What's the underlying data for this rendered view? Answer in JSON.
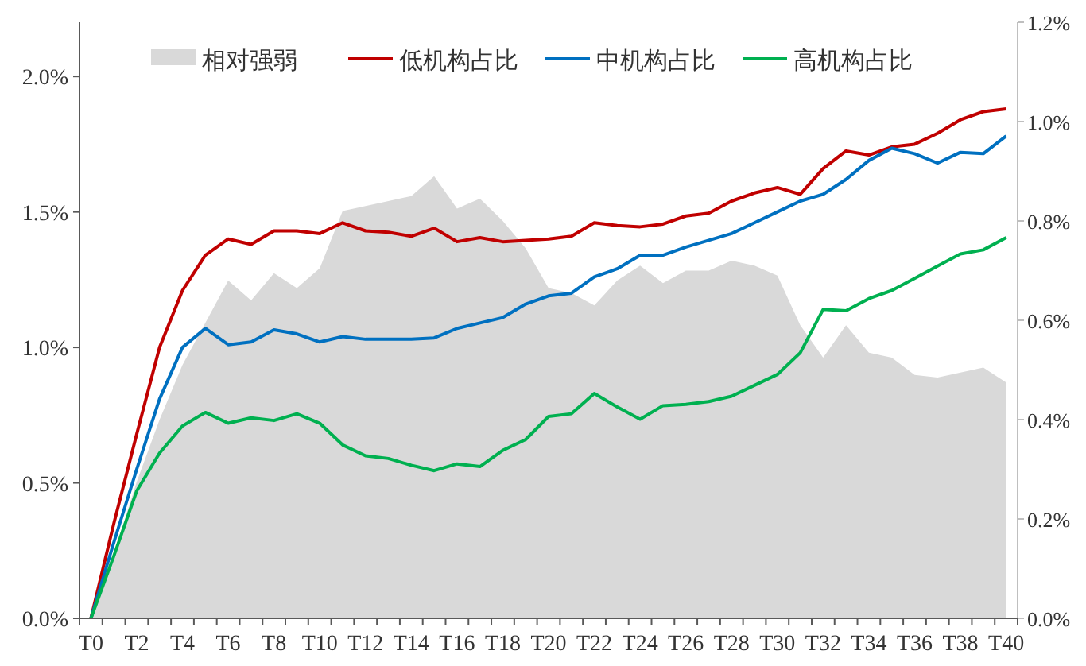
{
  "chart_data": {
    "type": "line",
    "categories": [
      "T0",
      null,
      "T2",
      null,
      "T4",
      null,
      "T6",
      null,
      "T8",
      null,
      "T10",
      null,
      "T12",
      null,
      "T14",
      null,
      "T16",
      null,
      "T18",
      null,
      "T20",
      null,
      "T22",
      null,
      "T24",
      null,
      "T26",
      null,
      "T28",
      null,
      "T30",
      null,
      "T32",
      null,
      "T34",
      null,
      "T36",
      null,
      "T38",
      null,
      "T40"
    ],
    "series": [
      {
        "name": "相对强弱",
        "type": "area",
        "axis": "y2",
        "color": "#d9d9d9",
        "values": [
          0,
          0.13,
          0.275,
          0.4,
          0.51,
          0.595,
          0.68,
          0.64,
          0.695,
          0.665,
          0.705,
          0.82,
          0.83,
          0.84,
          0.85,
          0.89,
          0.825,
          0.845,
          0.8,
          0.745,
          0.665,
          0.655,
          0.63,
          0.68,
          0.71,
          0.675,
          0.7,
          0.7,
          0.72,
          0.71,
          0.69,
          0.59,
          0.525,
          0.59,
          0.535,
          0.525,
          0.49,
          0.485,
          0.495,
          0.505,
          0.475
        ]
      },
      {
        "name": "低机构占比",
        "color": "#c00000",
        "values": [
          0,
          0.35,
          0.68,
          1.0,
          1.21,
          1.34,
          1.4,
          1.38,
          1.43,
          1.43,
          1.42,
          1.46,
          1.43,
          1.425,
          1.41,
          1.44,
          1.39,
          1.405,
          1.39,
          1.395,
          1.4,
          1.41,
          1.46,
          1.45,
          1.445,
          1.455,
          1.485,
          1.495,
          1.54,
          1.57,
          1.59,
          1.565,
          1.66,
          1.725,
          1.71,
          1.74,
          1.75,
          1.79,
          1.84,
          1.87,
          1.88
        ]
      },
      {
        "name": "中机构占比",
        "color": "#0070c0",
        "values": [
          0,
          0.28,
          0.55,
          0.81,
          1.0,
          1.07,
          1.01,
          1.02,
          1.065,
          1.05,
          1.02,
          1.04,
          1.03,
          1.03,
          1.03,
          1.035,
          1.07,
          1.09,
          1.11,
          1.16,
          1.19,
          1.2,
          1.26,
          1.29,
          1.34,
          1.34,
          1.37,
          1.395,
          1.42,
          1.46,
          1.5,
          1.54,
          1.565,
          1.62,
          1.69,
          1.735,
          1.715,
          1.68,
          1.72,
          1.715,
          1.78
        ]
      },
      {
        "name": "高机构占比",
        "color": "#00b050",
        "values": [
          0,
          0.23,
          0.47,
          0.61,
          0.71,
          0.76,
          0.72,
          0.74,
          0.73,
          0.755,
          0.72,
          0.64,
          0.6,
          0.59,
          0.565,
          0.545,
          0.57,
          0.56,
          0.62,
          0.66,
          0.745,
          0.755,
          0.83,
          0.78,
          0.735,
          0.785,
          0.79,
          0.8,
          0.82,
          0.86,
          0.9,
          0.98,
          1.14,
          1.135,
          1.18,
          1.21,
          1.255,
          1.3,
          1.345,
          1.36,
          1.405
        ]
      }
    ],
    "ylim": [
      0,
      2.2
    ],
    "yticks": [
      {
        "value": 0,
        "label": "0.0%"
      },
      {
        "value": 0.5,
        "label": "0.5%"
      },
      {
        "value": 1.0,
        "label": "1.0%"
      },
      {
        "value": 1.5,
        "label": "1.5%"
      },
      {
        "value": 2.0,
        "label": "2.0%"
      }
    ],
    "y2lim": [
      0,
      1.2
    ],
    "y2ticks": [
      {
        "value": 0,
        "label": "0.0%"
      },
      {
        "value": 0.2,
        "label": "0.2%"
      },
      {
        "value": 0.4,
        "label": "0.4%"
      },
      {
        "value": 0.6,
        "label": "0.6%"
      },
      {
        "value": 0.8,
        "label": "0.8%"
      },
      {
        "value": 1.0,
        "label": "1.0%"
      },
      {
        "value": 1.2,
        "label": "1.2%"
      }
    ],
    "legend": "top",
    "grid": false,
    "marker": "none"
  }
}
